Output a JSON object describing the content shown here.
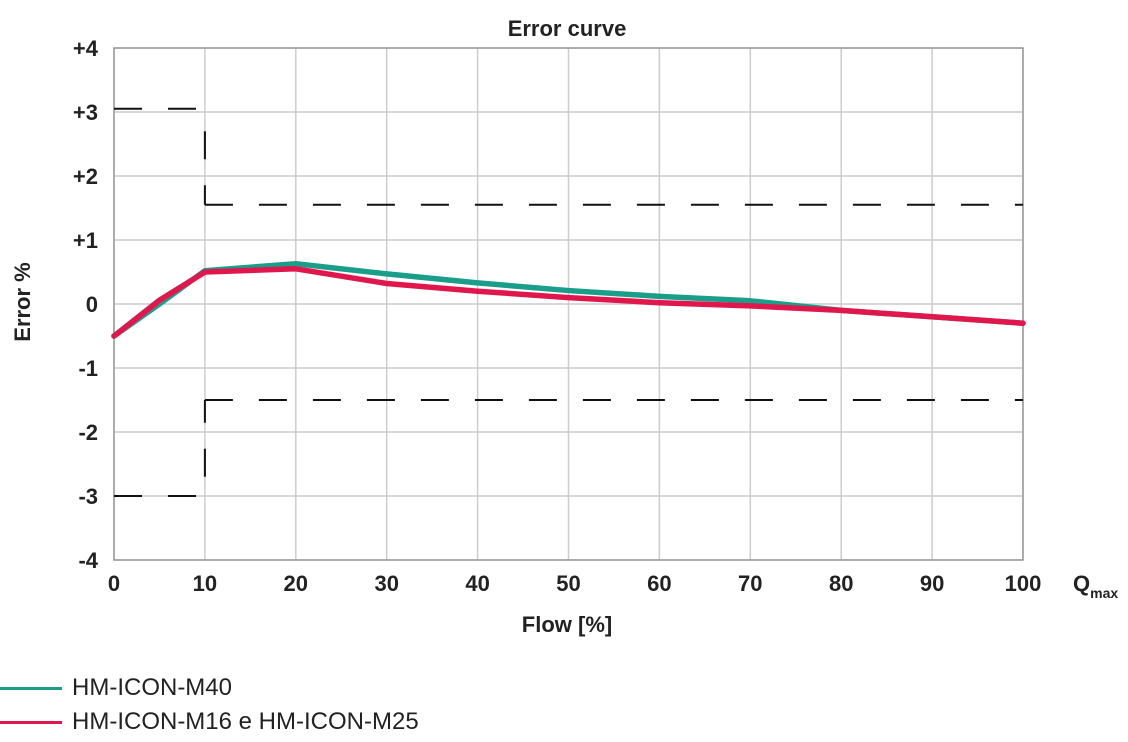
{
  "chart_data": {
    "type": "line",
    "title": "Error curve",
    "xlabel": "Flow [%]",
    "ylabel": "Error %",
    "x_unit_label": {
      "main": "Q",
      "sub": "max"
    },
    "xlim": [
      0,
      100
    ],
    "ylim": [
      -4,
      4
    ],
    "x_ticks": [
      0,
      10,
      20,
      30,
      40,
      50,
      60,
      70,
      80,
      90,
      100
    ],
    "x_tick_labels": [
      "0",
      "10",
      "20",
      "30",
      "40",
      "50",
      "60",
      "70",
      "80",
      "90",
      "100"
    ],
    "y_ticks": [
      4,
      3,
      2,
      1,
      0,
      -1,
      -2,
      -3,
      -4
    ],
    "y_tick_labels": [
      "+4",
      "+3",
      "+2",
      "+1",
      "0",
      "-1",
      "-2",
      "-3",
      "-4"
    ],
    "grid": true,
    "legend_position": "bottom-left",
    "series": [
      {
        "name": "HM-ICON-M40",
        "color": "#1a9e8a",
        "x": [
          0,
          5,
          10,
          20,
          30,
          40,
          50,
          60,
          70,
          80,
          90,
          100
        ],
        "y": [
          -0.5,
          0.0,
          0.52,
          0.63,
          0.47,
          0.33,
          0.21,
          0.12,
          0.05,
          -0.1,
          -0.2,
          -0.3
        ]
      },
      {
        "name": "HM-ICON-M16 e HM-ICON-M25",
        "color": "#e0174d",
        "x": [
          0,
          5,
          10,
          20,
          30,
          40,
          50,
          60,
          70,
          80,
          90,
          100
        ],
        "y": [
          -0.5,
          0.06,
          0.5,
          0.55,
          0.32,
          0.2,
          0.1,
          0.02,
          -0.03,
          -0.1,
          -0.2,
          -0.3
        ]
      }
    ],
    "limit_lines": [
      {
        "segments": [
          [
            [
              0,
              3.05
            ],
            [
              10,
              3.05
            ]
          ],
          [
            [
              10,
              2.7
            ],
            [
              10,
              1.55
            ]
          ],
          [
            [
              10,
              1.55
            ],
            [
              100,
              1.55
            ]
          ]
        ]
      },
      {
        "segments": [
          [
            [
              0,
              -3.0
            ],
            [
              10,
              -3.0
            ]
          ],
          [
            [
              10,
              -2.7
            ],
            [
              10,
              -1.5
            ]
          ],
          [
            [
              10,
              -1.5
            ],
            [
              100,
              -1.5
            ]
          ]
        ]
      }
    ]
  }
}
